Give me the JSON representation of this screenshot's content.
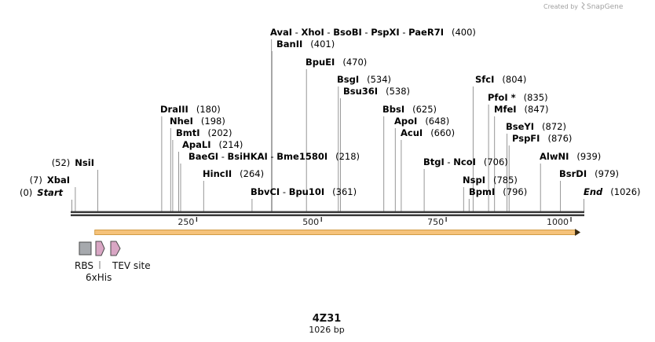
{
  "credit": {
    "prefix": "Created by",
    "brand": "SnapGene"
  },
  "map_title": "4Z31",
  "map_length": "1026 bp",
  "scale_ticks": [
    {
      "bp": 250,
      "label": "250"
    },
    {
      "bp": 500,
      "label": "500"
    },
    {
      "bp": 750,
      "label": "750"
    },
    {
      "bp": 1000,
      "label": "1000"
    }
  ],
  "sites": [
    {
      "bp": 0,
      "groups": [
        {
          "label_parts": [
            {
              "pos": "(0)"
            },
            {
              "name": "Start",
              "italic": true
            }
          ]
        }
      ]
    },
    {
      "bp": 7,
      "groups": [
        {
          "label_parts": [
            {
              "pos": "(7)"
            },
            {
              "name": "XbaI"
            }
          ]
        }
      ]
    },
    {
      "bp": 52,
      "groups": [
        {
          "label_parts": [
            {
              "pos": "(52)"
            },
            {
              "name": "NsiI"
            }
          ]
        }
      ]
    },
    {
      "bp": 180,
      "groups": [
        {
          "label_parts": [
            {
              "name": "DraIII"
            },
            {
              "pos": "(180)"
            }
          ]
        }
      ]
    },
    {
      "bp": 198,
      "groups": [
        {
          "label_parts": [
            {
              "name": "NheI"
            },
            {
              "pos": "(198)"
            }
          ]
        }
      ]
    },
    {
      "bp": 202,
      "groups": [
        {
          "label_parts": [
            {
              "name": "BmtI"
            },
            {
              "pos": "(202)"
            }
          ]
        }
      ]
    },
    {
      "bp": 214,
      "groups": [
        {
          "label_parts": [
            {
              "name": "ApaLI"
            },
            {
              "pos": "(214)"
            }
          ]
        }
      ]
    },
    {
      "bp": 218,
      "groups": [
        {
          "label_parts": [
            {
              "name": "BaeGI"
            },
            {
              "sep": " - "
            },
            {
              "name": "BsiHKAI"
            },
            {
              "sep": " - "
            },
            {
              "name": "Bme1580I"
            },
            {
              "pos": "(218)"
            }
          ]
        }
      ]
    },
    {
      "bp": 264,
      "groups": [
        {
          "label_parts": [
            {
              "name": "HincII"
            },
            {
              "pos": "(264)"
            }
          ]
        }
      ]
    },
    {
      "bp": 361,
      "groups": [
        {
          "label_parts": [
            {
              "name": "BbvCI"
            },
            {
              "sep": " - "
            },
            {
              "name": "Bpu10I"
            },
            {
              "pos": "(361)"
            }
          ]
        }
      ]
    },
    {
      "bp": 400,
      "groups": [
        {
          "label_parts": [
            {
              "name": "AvaI"
            },
            {
              "sep": " - "
            },
            {
              "name": "XhoI"
            },
            {
              "sep": " - "
            },
            {
              "name": "BsoBI"
            },
            {
              "sep": " - "
            },
            {
              "name": "PspXI"
            },
            {
              "sep": " - "
            },
            {
              "name": "PaeR7I"
            },
            {
              "pos": "(400)"
            }
          ]
        }
      ]
    },
    {
      "bp": 401,
      "groups": [
        {
          "label_parts": [
            {
              "name": "BanII"
            },
            {
              "pos": "(401)"
            }
          ]
        }
      ]
    },
    {
      "bp": 470,
      "groups": [
        {
          "label_parts": [
            {
              "name": "BpuEI"
            },
            {
              "pos": "(470)"
            }
          ]
        }
      ]
    },
    {
      "bp": 534,
      "groups": [
        {
          "label_parts": [
            {
              "name": "BsgI"
            },
            {
              "pos": "(534)"
            }
          ]
        }
      ]
    },
    {
      "bp": 538,
      "groups": [
        {
          "label_parts": [
            {
              "name": "Bsu36I"
            },
            {
              "pos": "(538)"
            }
          ]
        }
      ]
    },
    {
      "bp": 625,
      "groups": [
        {
          "label_parts": [
            {
              "name": "BbsI"
            },
            {
              "pos": "(625)"
            }
          ]
        }
      ]
    },
    {
      "bp": 648,
      "groups": [
        {
          "label_parts": [
            {
              "name": "ApoI"
            },
            {
              "pos": "(648)"
            }
          ]
        }
      ]
    },
    {
      "bp": 660,
      "groups": [
        {
          "label_parts": [
            {
              "name": "AcuI"
            },
            {
              "pos": "(660)"
            }
          ]
        }
      ]
    },
    {
      "bp": 706,
      "groups": [
        {
          "label_parts": [
            {
              "name": "BtgI"
            },
            {
              "sep": " - "
            },
            {
              "name": "NcoI"
            },
            {
              "pos": "(706)"
            }
          ]
        }
      ]
    },
    {
      "bp": 785,
      "groups": [
        {
          "label_parts": [
            {
              "name": "NspI"
            },
            {
              "pos": "(785)"
            }
          ]
        }
      ]
    },
    {
      "bp": 796,
      "groups": [
        {
          "label_parts": [
            {
              "name": "BpmI"
            },
            {
              "pos": "(796)"
            }
          ]
        }
      ]
    },
    {
      "bp": 804,
      "groups": [
        {
          "label_parts": [
            {
              "name": "SfcI"
            },
            {
              "pos": "(804)"
            }
          ]
        }
      ]
    },
    {
      "bp": 835,
      "groups": [
        {
          "label_parts": [
            {
              "name": "PfoI"
            },
            {
              "name": " *"
            },
            {
              "pos": "(835)"
            }
          ]
        }
      ]
    },
    {
      "bp": 847,
      "groups": [
        {
          "label_parts": [
            {
              "name": "MfeI"
            },
            {
              "pos": "(847)"
            }
          ]
        }
      ]
    },
    {
      "bp": 872,
      "groups": [
        {
          "label_parts": [
            {
              "name": "BseYI"
            },
            {
              "pos": "(872)"
            }
          ]
        }
      ]
    },
    {
      "bp": 876,
      "groups": [
        {
          "label_parts": [
            {
              "name": "PspFI"
            },
            {
              "pos": "(876)"
            }
          ]
        }
      ]
    },
    {
      "bp": 939,
      "groups": [
        {
          "label_parts": [
            {
              "name": "AlwNI"
            },
            {
              "pos": "(939)"
            }
          ]
        }
      ]
    },
    {
      "bp": 979,
      "groups": [
        {
          "label_parts": [
            {
              "name": "BsrDI"
            },
            {
              "pos": "(979)"
            }
          ]
        }
      ]
    },
    {
      "bp": 1026,
      "groups": [
        {
          "label_parts": [
            {
              "name": "End",
              "italic": true
            },
            {
              "pos": "(1026)"
            }
          ]
        }
      ]
    }
  ],
  "features": {
    "orf": {
      "start_bp": 46,
      "end_bp": 1019,
      "color": "#f5c27a",
      "direction": "forward"
    },
    "rbs": {
      "label": "RBS",
      "color": "#a6a9ad"
    },
    "his_tag": {
      "label": "6xHis",
      "color": "#d9a6c4"
    },
    "tev_site": {
      "label": "TEV site",
      "color": "#d9a6c4"
    }
  }
}
